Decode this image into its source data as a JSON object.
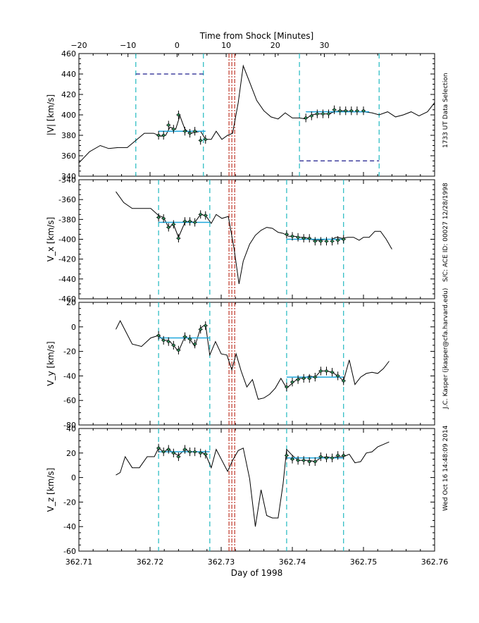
{
  "chart_data": {
    "type": "line",
    "title": "Time from Shock [Minutes]",
    "xlabel": "Day of 1998",
    "xlim": [
      362.71,
      362.76
    ],
    "x_ticks": [
      "362.71",
      "362.72",
      "362.73",
      "362.74",
      "362.75",
      "362.76"
    ],
    "top_axis": {
      "label": "Time from Shock [Minutes]",
      "ticks": [
        {
          "label": "−20",
          "x": 362.71
        },
        {
          "label": "−10",
          "x": 362.7169
        },
        {
          "label": "0",
          "x": 362.7238
        },
        {
          "label": "10",
          "x": 362.7307
        },
        {
          "label": "20",
          "x": 362.7376
        },
        {
          "label": "30",
          "x": 362.7445
        }
      ]
    },
    "shock_lines": [
      362.7311,
      362.7315,
      362.7319
    ],
    "side_text": [
      "1733 UT Data Selection",
      "S/C: ACE ID: 00027 12/28/1998",
      "J.C. Kasper (jkasper@cfa.harvard.edu)",
      "Wed Oct 16 14:48:09 2014"
    ],
    "panels": [
      {
        "id": "vmag",
        "ylabel": "|V| [km/s]",
        "ylim": [
          340,
          460
        ],
        "y_ticks": [
          "340",
          "360",
          "380",
          "400",
          "420",
          "440",
          "460"
        ],
        "line_x": [
          362.71,
          362.7115,
          362.713,
          362.7142,
          362.7155,
          362.7168,
          362.718,
          362.7192,
          362.7205,
          362.7215,
          362.7222,
          362.7228,
          362.7236,
          362.7242,
          362.7249,
          362.7256,
          362.7264,
          362.7271,
          362.7278,
          362.7286,
          362.7293,
          362.7301,
          362.7309,
          362.7316,
          362.7324,
          362.7331,
          362.734,
          362.735,
          362.736,
          362.737,
          362.738,
          362.739,
          362.74,
          362.741,
          362.7419,
          362.7427,
          362.7435,
          362.7443,
          362.7451,
          362.7459,
          362.7467,
          362.7475,
          362.7483,
          362.7491,
          362.75,
          362.7512,
          362.7522,
          362.7534,
          362.7545,
          362.7556,
          362.7567,
          362.7578,
          362.759,
          362.76
        ],
        "line_y": [
          353,
          364,
          370,
          367,
          368,
          368,
          375,
          382,
          382,
          379,
          380,
          388,
          386,
          399,
          386,
          382,
          383,
          384,
          376,
          376,
          384,
          376,
          380,
          382,
          412,
          448,
          432,
          414,
          404,
          398,
          396,
          402,
          397,
          397,
          396,
          400,
          401,
          401,
          401,
          403,
          404,
          404,
          403,
          403,
          403,
          402,
          400,
          403,
          398,
          400,
          403,
          399,
          403,
          412
        ],
        "err_x": [
          362.7212,
          362.7219,
          362.7226,
          362.7233,
          362.724,
          362.7249,
          362.7256,
          362.7263,
          362.7271,
          362.7278
        ],
        "err_y": [
          380,
          380,
          390,
          386,
          400,
          384,
          382,
          384,
          375,
          376
        ],
        "err2_x": [
          362.7419,
          362.7427,
          362.7435,
          362.7443,
          362.7451,
          362.7459,
          362.7467,
          362.7475,
          362.7483,
          362.7491,
          362.75
        ],
        "err2_y": [
          397,
          399,
          401,
          401,
          401,
          405,
          404,
          404,
          404,
          404,
          404
        ],
        "fit_segments": [
          {
            "x": [
              362.7212,
              362.7278
            ],
            "y": 384
          },
          {
            "x": [
              362.7419,
              362.7508
            ],
            "y": 403
          }
        ],
        "selection_lines": [
          362.718,
          362.7275,
          362.741,
          362.7522
        ],
        "dash_segments": [
          {
            "x": [
              362.718,
              362.7275
            ],
            "y": 440
          },
          {
            "x": [
              362.741,
              362.7522
            ],
            "y": 355
          }
        ]
      },
      {
        "id": "vx",
        "ylabel": "V_x [km/s]",
        "ylim": [
          -460,
          -340
        ],
        "y_ticks": [
          "-460",
          "-440",
          "-420",
          "-400",
          "-380",
          "-360",
          "-340"
        ],
        "line_x": [
          362.7152,
          362.7163,
          362.7175,
          362.7188,
          362.7201,
          362.7212,
          362.7219,
          362.7226,
          362.7233,
          362.724,
          362.7249,
          362.7256,
          362.7263,
          362.7271,
          362.7278,
          362.7286,
          362.7293,
          362.7301,
          362.731,
          362.7318,
          362.7325,
          362.7331,
          362.734,
          362.7348,
          362.7356,
          362.7364,
          362.7372,
          362.738,
          362.7387,
          362.7395,
          362.7403,
          362.741,
          362.7418,
          362.7425,
          362.7432,
          362.744,
          362.7447,
          362.7455,
          362.7462,
          362.747,
          362.7478,
          362.7486,
          362.7494,
          362.75,
          362.7508,
          362.7516,
          362.7524,
          362.7532,
          362.754
        ],
        "line_y": [
          -352,
          -363,
          -369,
          -369,
          -369,
          -376,
          -378,
          -388,
          -385,
          -398,
          -383,
          -382,
          -383,
          -375,
          -376,
          -384,
          -375,
          -379,
          -377,
          -409,
          -445,
          -422,
          -405,
          -396,
          -391,
          -388,
          -389,
          -393,
          -394,
          -397,
          -397,
          -398,
          -398,
          -400,
          -401,
          -401,
          -400,
          -400,
          -398,
          -399,
          -398,
          -398,
          -401,
          -398,
          -398,
          -392,
          -392,
          -400,
          -410
        ],
        "err_x": [
          362.7212,
          362.7219,
          362.7226,
          362.7233,
          362.724,
          362.7249,
          362.7256,
          362.7263,
          362.7271,
          362.7278
        ],
        "err_y": [
          -378,
          -379,
          -388,
          -385,
          -399,
          -382,
          -382,
          -383,
          -375,
          -376
        ],
        "err2_x": [
          362.7392,
          362.74,
          362.7408,
          362.7416,
          362.7424,
          362.7432,
          362.744,
          362.7448,
          362.7456,
          362.7464,
          362.7472
        ],
        "err2_y": [
          -395,
          -397,
          -398,
          -399,
          -399,
          -402,
          -402,
          -402,
          -402,
          -401,
          -400
        ],
        "fit_segments": [
          {
            "x": [
              362.7212,
              362.7284
            ],
            "y": -383
          },
          {
            "x": [
              362.7392,
              362.7472
            ],
            "y": -400
          }
        ],
        "selection_lines": [
          362.7212,
          362.7284,
          362.7392,
          362.7472
        ],
        "dash_segments": []
      },
      {
        "id": "vy",
        "ylabel": "V_y [km/s]",
        "ylim": [
          -80,
          20
        ],
        "y_ticks": [
          "-80",
          "-60",
          "-40",
          "-20",
          "0",
          "20"
        ],
        "line_x": [
          362.7152,
          362.7158,
          362.7175,
          362.7188,
          362.7201,
          362.7212,
          362.7219,
          362.7226,
          362.7233,
          362.724,
          362.7249,
          362.7256,
          362.7263,
          362.7271,
          362.7278,
          362.7284,
          362.7292,
          362.73,
          362.7308,
          362.7315,
          362.7321,
          362.7328,
          362.7336,
          362.7344,
          362.7352,
          362.736,
          362.7368,
          362.7376,
          362.7384,
          362.7392,
          362.74,
          362.7408,
          362.7416,
          362.7424,
          362.7432,
          362.744,
          362.7448,
          362.7456,
          362.7464,
          362.7472,
          362.748,
          362.7488,
          362.7496,
          362.7504,
          362.7512,
          362.752,
          362.7528,
          362.7536
        ],
        "line_y": [
          -2,
          5,
          -14,
          -16,
          -9,
          -7,
          -11,
          -11,
          -15,
          -20,
          -8,
          -10,
          -16,
          -1,
          2,
          -23,
          -12,
          -22,
          -23,
          -35,
          -22,
          -36,
          -49,
          -43,
          -59,
          -58,
          -55,
          -50,
          -42,
          -50,
          -46,
          -42,
          -42,
          -40,
          -41,
          -36,
          -36,
          -37,
          -40,
          -44,
          -27,
          -47,
          -41,
          -38,
          -37,
          -38,
          -34,
          -28
        ],
        "err_x": [
          362.7212,
          362.7219,
          362.7226,
          362.7233,
          362.724,
          362.7249,
          362.7256,
          362.7263,
          362.7271,
          362.7278
        ],
        "err_y": [
          -7,
          -11,
          -12,
          -15,
          -19,
          -8,
          -10,
          -14,
          -2,
          1
        ],
        "err2_x": [
          362.7392,
          362.74,
          362.7408,
          362.7416,
          362.7424,
          362.7432,
          362.744,
          362.7448,
          362.7456,
          362.7464,
          362.7472
        ],
        "err2_y": [
          -49,
          -45,
          -43,
          -42,
          -42,
          -41,
          -36,
          -36,
          -37,
          -40,
          -44
        ],
        "fit_segments": [
          {
            "x": [
              362.7212,
              362.7284
            ],
            "y": -9
          },
          {
            "x": [
              362.7392,
              362.7472
            ],
            "y": -41
          }
        ],
        "selection_lines": [
          362.7212,
          362.7284,
          362.7392,
          362.7472
        ],
        "dash_segments": []
      },
      {
        "id": "vz",
        "ylabel": "V_z [km/s]",
        "ylim": [
          -60,
          40
        ],
        "y_ticks": [
          "-60",
          "-40",
          "-20",
          "0",
          "20",
          "40"
        ],
        "line_x": [
          362.7152,
          362.7158,
          362.7165,
          362.7175,
          362.7185,
          362.7196,
          362.7206,
          362.7212,
          362.7219,
          362.7226,
          362.7233,
          362.724,
          362.7249,
          362.7256,
          362.7263,
          362.7271,
          362.7278,
          362.7286,
          362.7293,
          362.7301,
          362.7309,
          362.7316,
          362.7324,
          362.7331,
          362.734,
          362.7348,
          362.7356,
          362.7364,
          362.7372,
          362.738,
          362.7387,
          362.7392,
          362.74,
          362.7408,
          362.7416,
          362.7424,
          362.7432,
          362.744,
          362.7448,
          362.7456,
          362.7464,
          362.7472,
          362.748,
          362.7488,
          362.7496,
          362.7504,
          362.7512,
          362.752,
          362.7528,
          362.7536
        ],
        "line_y": [
          2,
          4,
          17,
          8,
          8,
          17,
          17,
          24,
          21,
          23,
          20,
          18,
          23,
          21,
          21,
          21,
          19,
          8,
          23,
          14,
          5,
          14,
          22,
          24,
          -1,
          -40,
          -10,
          -31,
          -33,
          -33,
          -5,
          23,
          18,
          14,
          14,
          14,
          13,
          16,
          17,
          16,
          17,
          17,
          19,
          12,
          13,
          20,
          21,
          25,
          27,
          29
        ],
        "err_x": [
          362.7212,
          362.7219,
          362.7226,
          362.7233,
          362.724,
          362.7249,
          362.7256,
          362.7263,
          362.7271,
          362.7278
        ],
        "err_y": [
          24,
          21,
          23,
          20,
          17,
          23,
          21,
          21,
          20,
          19
        ],
        "err2_x": [
          362.7392,
          362.74,
          362.7408,
          362.7416,
          362.7424,
          362.7432,
          362.744,
          362.7448,
          362.7456,
          362.7464,
          362.7472
        ],
        "err2_y": [
          18,
          15,
          14,
          14,
          13,
          13,
          17,
          16,
          16,
          18,
          18
        ],
        "fit_segments": [
          {
            "x": [
              362.7212,
              362.7284
            ],
            "y": 21
          },
          {
            "x": [
              362.7392,
              362.7472
            ],
            "y": 16
          }
        ],
        "selection_lines": [
          362.7212,
          362.7284,
          362.7392,
          362.7472
        ],
        "dash_segments": []
      }
    ]
  },
  "colors": {
    "axes": "#000000",
    "series": "#000000",
    "fit": "#1fa7dc",
    "selection": "#20b9c0",
    "shock": "#c0392b",
    "window_bar": "#1c1c8c",
    "error_marker": "#2e8b57"
  }
}
